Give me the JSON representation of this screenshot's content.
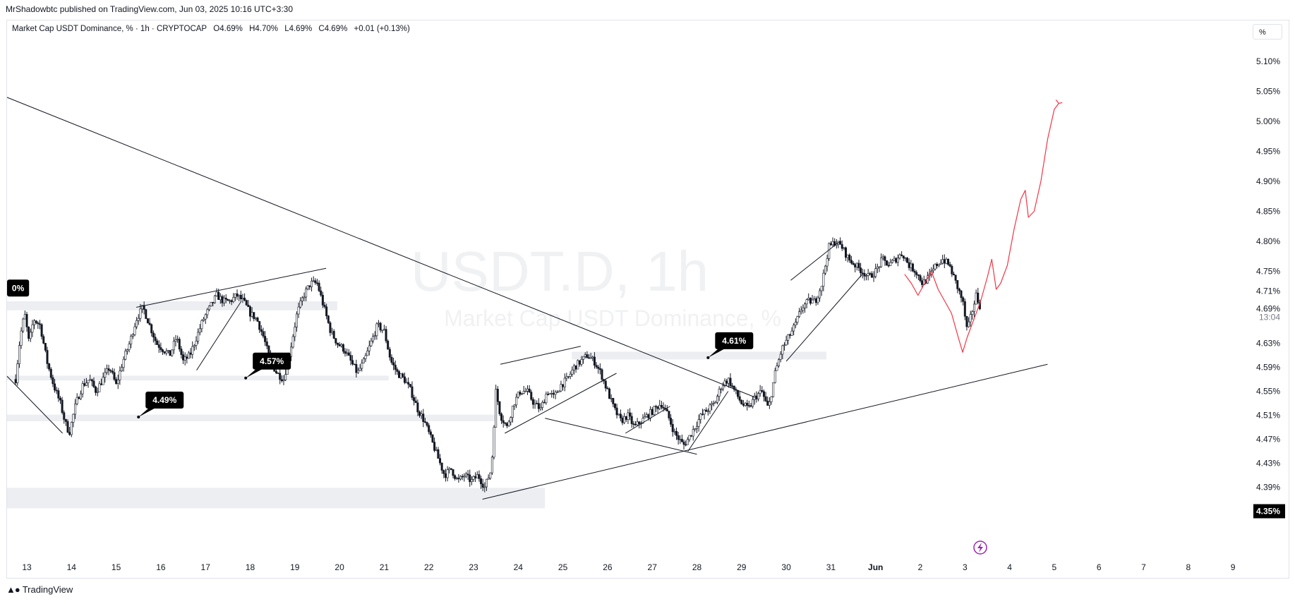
{
  "publisher": "MrShadowbtc published on TradingView.com, Jun 03, 2025 10:16 UTC+3:30",
  "legend": {
    "symbol": "Market Cap USDT Dominance, % · 1h · CRYPTOCAP",
    "open": "O4.69%",
    "high": "H4.70%",
    "low": "L4.69%",
    "close": "C4.69%",
    "change": "+0.01 (+0.13%)"
  },
  "unit_button": "%",
  "watermark": {
    "title": "USDT.D, 1h",
    "subtitle": "Market Cap USDT Dominance, %"
  },
  "footer": {
    "brand": "TradingView"
  },
  "colors": {
    "candles": "#131722",
    "projection": "#f23645",
    "zones": "#eceef2",
    "trendlines": "#131722",
    "label_bg": "#000000",
    "price_tag_bg": "#000000",
    "lightning_icon": "#9c27b0"
  },
  "chart_data": {
    "type": "candlestick",
    "timeframe": "1h",
    "y_unit": "%",
    "ylim": [
      4.325,
      5.13
    ],
    "y_ticks": [
      "5.10%",
      "5.05%",
      "5.00%",
      "4.95%",
      "4.90%",
      "4.85%",
      "4.80%",
      "4.75%",
      "4.71%",
      "4.69%",
      "4.63%",
      "4.59%",
      "4.55%",
      "4.51%",
      "4.47%",
      "4.43%",
      "4.39%",
      "4.35%"
    ],
    "x_ticks": [
      "13",
      "14",
      "15",
      "16",
      "17",
      "18",
      "19",
      "20",
      "21",
      "22",
      "23",
      "24",
      "25",
      "26",
      "27",
      "28",
      "29",
      "30",
      "31",
      "Jun",
      "2",
      "3",
      "4",
      "5",
      "6",
      "7",
      "8",
      "9"
    ],
    "price_scale_labels": {
      "last_price": "4.69%",
      "countdown": "13:04",
      "current_value": "4.71%",
      "bottom_marker": "4.35%"
    },
    "price_path": [
      [
        12.75,
        4.57
      ],
      [
        12.85,
        4.64
      ],
      [
        12.95,
        4.68
      ],
      [
        13.05,
        4.63
      ],
      [
        13.15,
        4.67
      ],
      [
        13.3,
        4.66
      ],
      [
        13.45,
        4.6
      ],
      [
        13.6,
        4.56
      ],
      [
        13.75,
        4.53
      ],
      [
        13.85,
        4.5
      ],
      [
        13.95,
        4.48
      ],
      [
        14.1,
        4.53
      ],
      [
        14.25,
        4.56
      ],
      [
        14.4,
        4.57
      ],
      [
        14.55,
        4.55
      ],
      [
        14.7,
        4.57
      ],
      [
        14.85,
        4.59
      ],
      [
        15.0,
        4.56
      ],
      [
        15.15,
        4.6
      ],
      [
        15.3,
        4.63
      ],
      [
        15.45,
        4.67
      ],
      [
        15.6,
        4.69
      ],
      [
        15.75,
        4.66
      ],
      [
        15.9,
        4.63
      ],
      [
        16.05,
        4.62
      ],
      [
        16.2,
        4.61
      ],
      [
        16.35,
        4.64
      ],
      [
        16.5,
        4.6
      ],
      [
        16.65,
        4.61
      ],
      [
        16.8,
        4.64
      ],
      [
        16.95,
        4.67
      ],
      [
        17.1,
        4.69
      ],
      [
        17.25,
        4.71
      ],
      [
        17.4,
        4.7
      ],
      [
        17.55,
        4.7
      ],
      [
        17.7,
        4.71
      ],
      [
        17.85,
        4.7
      ],
      [
        18.0,
        4.68
      ],
      [
        18.15,
        4.67
      ],
      [
        18.3,
        4.64
      ],
      [
        18.45,
        4.6
      ],
      [
        18.6,
        4.58
      ],
      [
        18.75,
        4.57
      ],
      [
        18.9,
        4.62
      ],
      [
        19.05,
        4.68
      ],
      [
        19.2,
        4.71
      ],
      [
        19.35,
        4.73
      ],
      [
        19.5,
        4.73
      ],
      [
        19.65,
        4.69
      ],
      [
        19.8,
        4.65
      ],
      [
        19.95,
        4.63
      ],
      [
        20.1,
        4.62
      ],
      [
        20.25,
        4.6
      ],
      [
        20.4,
        4.58
      ],
      [
        20.55,
        4.6
      ],
      [
        20.7,
        4.63
      ],
      [
        20.85,
        4.66
      ],
      [
        21.0,
        4.65
      ],
      [
        21.15,
        4.6
      ],
      [
        21.3,
        4.58
      ],
      [
        21.45,
        4.57
      ],
      [
        21.6,
        4.55
      ],
      [
        21.75,
        4.52
      ],
      [
        21.9,
        4.5
      ],
      [
        22.05,
        4.47
      ],
      [
        22.2,
        4.44
      ],
      [
        22.35,
        4.41
      ],
      [
        22.5,
        4.42
      ],
      [
        22.65,
        4.4
      ],
      [
        22.8,
        4.41
      ],
      [
        22.95,
        4.4
      ],
      [
        23.1,
        4.41
      ],
      [
        23.25,
        4.39
      ],
      [
        23.4,
        4.42
      ],
      [
        23.5,
        4.55
      ],
      [
        23.6,
        4.51
      ],
      [
        23.75,
        4.49
      ],
      [
        23.9,
        4.53
      ],
      [
        24.05,
        4.55
      ],
      [
        24.2,
        4.55
      ],
      [
        24.35,
        4.53
      ],
      [
        24.5,
        4.52
      ],
      [
        24.65,
        4.55
      ],
      [
        24.8,
        4.54
      ],
      [
        24.95,
        4.56
      ],
      [
        25.1,
        4.57
      ],
      [
        25.25,
        4.59
      ],
      [
        25.4,
        4.6
      ],
      [
        25.55,
        4.61
      ],
      [
        25.7,
        4.6
      ],
      [
        25.85,
        4.58
      ],
      [
        26.0,
        4.55
      ],
      [
        26.15,
        4.52
      ],
      [
        26.3,
        4.5
      ],
      [
        26.45,
        4.51
      ],
      [
        26.6,
        4.49
      ],
      [
        26.75,
        4.5
      ],
      [
        26.9,
        4.51
      ],
      [
        27.05,
        4.52
      ],
      [
        27.2,
        4.53
      ],
      [
        27.35,
        4.51
      ],
      [
        27.5,
        4.48
      ],
      [
        27.6,
        4.47
      ],
      [
        27.7,
        4.46
      ],
      [
        27.8,
        4.47
      ],
      [
        27.95,
        4.49
      ],
      [
        28.1,
        4.51
      ],
      [
        28.25,
        4.52
      ],
      [
        28.4,
        4.53
      ],
      [
        28.55,
        4.56
      ],
      [
        28.7,
        4.57
      ],
      [
        28.85,
        4.55
      ],
      [
        29.0,
        4.53
      ],
      [
        29.15,
        4.52
      ],
      [
        29.3,
        4.54
      ],
      [
        29.45,
        4.55
      ],
      [
        29.6,
        4.52
      ],
      [
        29.75,
        4.58
      ],
      [
        29.9,
        4.62
      ],
      [
        30.05,
        4.64
      ],
      [
        30.2,
        4.66
      ],
      [
        30.35,
        4.69
      ],
      [
        30.5,
        4.7
      ],
      [
        30.65,
        4.7
      ],
      [
        30.8,
        4.73
      ],
      [
        30.95,
        4.79
      ],
      [
        31.1,
        4.8
      ],
      [
        31.25,
        4.79
      ],
      [
        31.4,
        4.77
      ],
      [
        31.55,
        4.76
      ],
      [
        31.7,
        4.75
      ],
      [
        31.85,
        4.74
      ],
      [
        32.0,
        4.75
      ],
      [
        32.15,
        4.77
      ],
      [
        32.3,
        4.76
      ],
      [
        32.45,
        4.77
      ],
      [
        32.6,
        4.78
      ],
      [
        32.75,
        4.76
      ],
      [
        32.9,
        4.75
      ],
      [
        33.05,
        4.73
      ],
      [
        33.2,
        4.74
      ],
      [
        33.35,
        4.76
      ],
      [
        33.5,
        4.77
      ],
      [
        33.65,
        4.76
      ],
      [
        33.8,
        4.73
      ],
      [
        33.95,
        4.7
      ],
      [
        34.05,
        4.65
      ],
      [
        34.15,
        4.68
      ],
      [
        34.25,
        4.71
      ],
      [
        34.35,
        4.69
      ]
    ],
    "projection_path": [
      [
        32.65,
        4.745
      ],
      [
        32.8,
        4.73
      ],
      [
        32.95,
        4.71
      ],
      [
        33.1,
        4.73
      ],
      [
        33.25,
        4.75
      ],
      [
        33.4,
        4.72
      ],
      [
        33.55,
        4.7
      ],
      [
        33.7,
        4.68
      ],
      [
        33.85,
        4.64
      ],
      [
        33.95,
        4.615
      ],
      [
        34.05,
        4.64
      ],
      [
        34.2,
        4.67
      ],
      [
        34.35,
        4.7
      ],
      [
        34.5,
        4.74
      ],
      [
        34.6,
        4.77
      ],
      [
        34.7,
        4.72
      ],
      [
        34.8,
        4.73
      ],
      [
        34.95,
        4.76
      ],
      [
        35.1,
        4.82
      ],
      [
        35.25,
        4.87
      ],
      [
        35.35,
        4.885
      ],
      [
        35.42,
        4.84
      ],
      [
        35.55,
        4.85
      ],
      [
        35.7,
        4.9
      ],
      [
        35.85,
        4.97
      ],
      [
        36.0,
        5.02
      ],
      [
        36.1,
        5.03
      ]
    ],
    "zones": [
      {
        "from": 12.5,
        "to": 19.95,
        "low": 4.685,
        "high": 4.7
      },
      {
        "from": 12.5,
        "to": 21.1,
        "low": 4.568,
        "high": 4.576
      },
      {
        "from": 12.5,
        "to": 23.5,
        "low": 4.5,
        "high": 4.511
      },
      {
        "from": 12.5,
        "to": 24.6,
        "low": 4.355,
        "high": 4.389
      },
      {
        "from": 25.2,
        "to": 30.9,
        "low": 4.603,
        "high": 4.616
      }
    ],
    "trendlines": [
      [
        [
          12.5,
          5.04
        ],
        [
          29.3,
          4.54
        ]
      ],
      [
        [
          23.2,
          4.37
        ],
        [
          35.85,
          4.595
        ]
      ],
      [
        [
          15.45,
          4.69
        ],
        [
          19.7,
          4.755
        ]
      ],
      [
        [
          16.8,
          4.585
        ],
        [
          17.8,
          4.7
        ]
      ],
      [
        [
          23.6,
          4.595
        ],
        [
          25.4,
          4.625
        ]
      ],
      [
        [
          23.7,
          4.48
        ],
        [
          26.2,
          4.58
        ]
      ],
      [
        [
          24.6,
          4.505
        ],
        [
          28.0,
          4.445
        ]
      ],
      [
        [
          26.4,
          4.48
        ],
        [
          27.4,
          4.525
        ]
      ],
      [
        [
          27.8,
          4.45
        ],
        [
          28.7,
          4.55
        ]
      ],
      [
        [
          30.0,
          4.6
        ],
        [
          31.7,
          4.745
        ]
      ],
      [
        [
          30.1,
          4.735
        ],
        [
          31.2,
          4.8
        ]
      ],
      [
        [
          12.5,
          4.575
        ],
        [
          13.8,
          4.48
        ]
      ]
    ],
    "callouts": [
      {
        "label": "0%",
        "x": 12.5,
        "y": 4.722
      },
      {
        "label": "4.57%",
        "x": 17.9,
        "y": 4.572
      },
      {
        "label": "4.49%",
        "x": 15.5,
        "y": 4.507
      },
      {
        "label": "4.61%",
        "x": 28.25,
        "y": 4.606
      }
    ]
  }
}
